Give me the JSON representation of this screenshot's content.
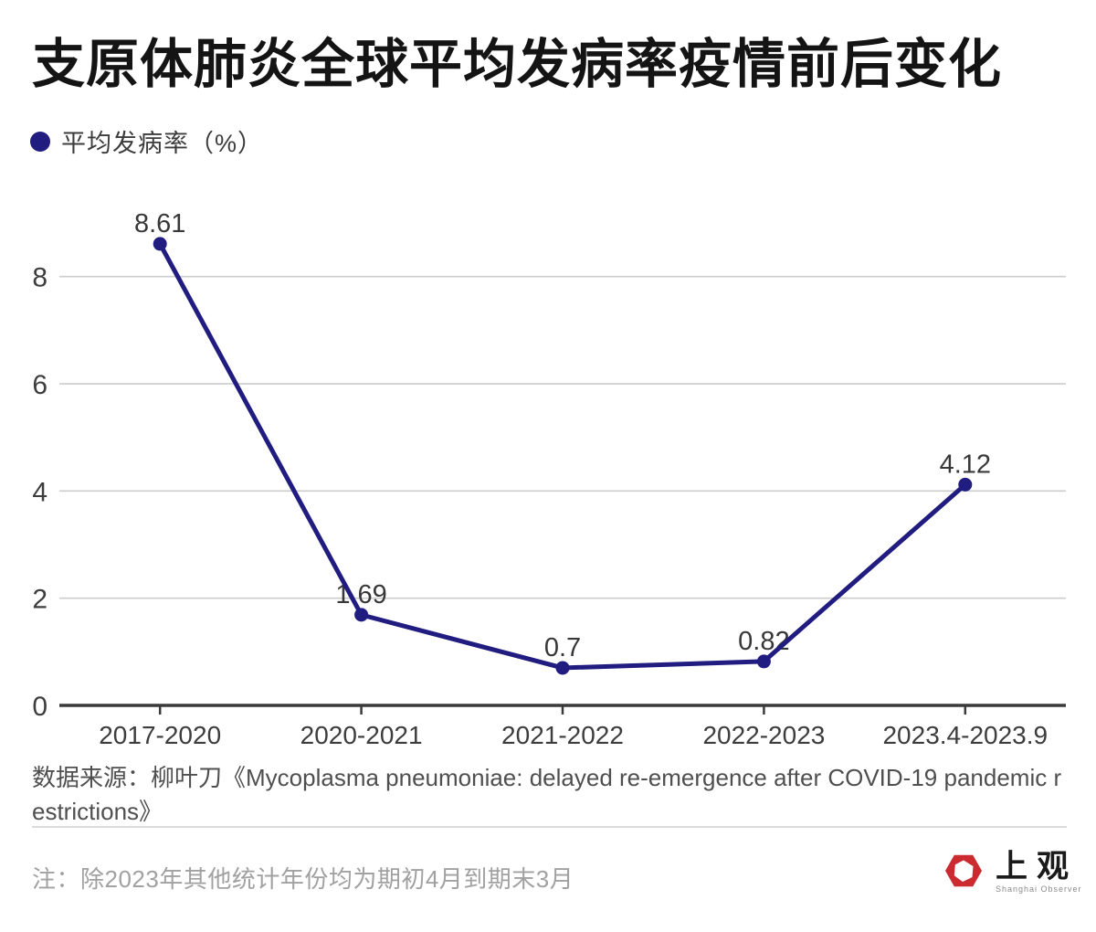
{
  "header": {
    "title": "支原体肺炎全球平均发病率疫情前后变化"
  },
  "legend": {
    "label": "平均发病率（%）",
    "marker_color": "#211d80"
  },
  "chart_data": {
    "type": "line",
    "title": "支原体肺炎全球平均发病率疫情前后变化",
    "series_name": "平均发病率（%）",
    "categories": [
      "2017-2020",
      "2020-2021",
      "2021-2022",
      "2022-2023",
      "2023.4-2023.9"
    ],
    "values": [
      8.61,
      1.69,
      0.7,
      0.82,
      4.12
    ],
    "point_labels": [
      "8.61",
      "1.69",
      "0.7",
      "0.82",
      "4.12"
    ],
    "yticks": [
      0,
      2,
      4,
      6,
      8
    ],
    "ylim": [
      0,
      9.2
    ],
    "xlabel": "",
    "ylabel": "",
    "grid": "horizontal-only",
    "legend_position": "top-left",
    "line_color": "#211d80",
    "point_color": "#211d80",
    "axis_color": "#3a3a3a",
    "grid_color": "#cccccc",
    "tick_label_color": "#3d3d3d",
    "point_label_color": "#383838"
  },
  "footer": {
    "source": "数据来源：柳叶刀《Mycoplasma pneumoniae: delayed re-emergence after COVID-19 pandemic restrictions》",
    "note": "注：除2023年其他统计年份均为期初4月到期末3月",
    "logo_cn": "上观",
    "logo_en": "Shanghai Observer",
    "logo_color": "#cb2b30"
  }
}
